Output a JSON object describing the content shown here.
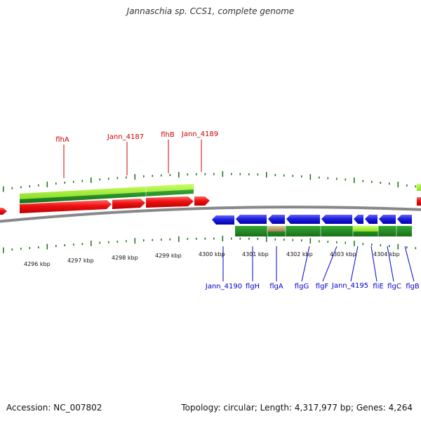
{
  "title": "Jannaschia sp. CCS1, complete genome",
  "accession": "Accession: NC_007802",
  "summary": "Topology: circular; Length: 4,317,977 bp; Genes: 4,264",
  "colors": {
    "forward_gene": "#ee1c1c",
    "reverse_gene": "#2222dd",
    "forward_label": "#cc0000",
    "reverse_label": "#0000cc",
    "backbone": "#888888",
    "tick": "#227722",
    "light_green": "#99ee33",
    "dark_green": "#228822",
    "tan": "#b8a070"
  },
  "axis_labels": [
    "4296 kbp",
    "4297 kbp",
    "4298 kbp",
    "4299 kbp",
    "4300 kbp",
    "4301 kbp",
    "4302 kbp",
    "4303 kbp",
    "4304 kbp"
  ],
  "forward_genes": [
    "flhA",
    "Jann_4187",
    "flhB",
    "Jann_4189"
  ],
  "reverse_genes": [
    "Jann_4190",
    "flgH",
    "flgA",
    "flgG",
    "flgF",
    "Jann_4195",
    "fliE",
    "flgC",
    "flgB"
  ]
}
